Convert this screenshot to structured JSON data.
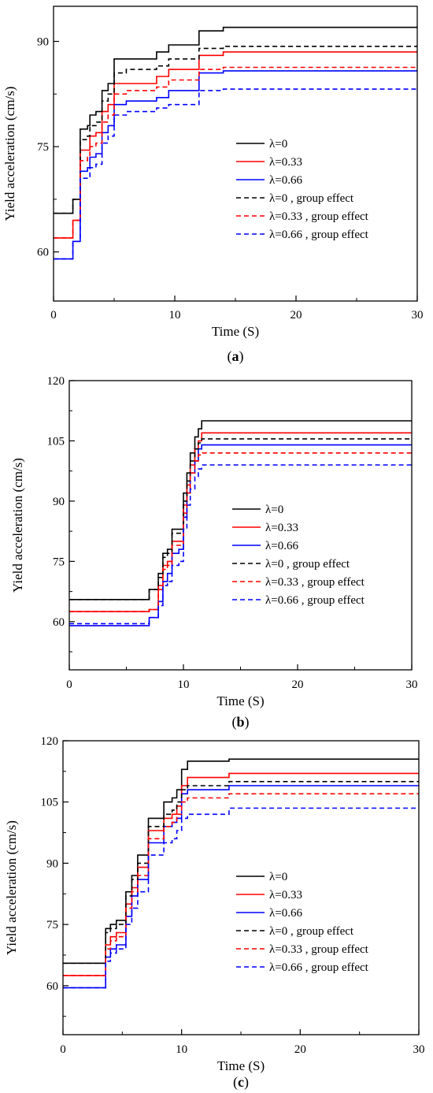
{
  "chart_data": [
    {
      "type": "line",
      "caption_letter": "a",
      "xlabel": "Time (S)",
      "ylabel": "Yield acceleration (cm/s)",
      "xlim": [
        0,
        30
      ],
      "ylim": [
        53,
        95
      ],
      "x_ticks": [
        0,
        10,
        20,
        30
      ],
      "y_ticks": [
        60,
        75,
        90
      ],
      "legend_position": "center-right",
      "series": [
        {
          "name": "λ=0",
          "color": "#000000",
          "dash": false,
          "x": [
            0,
            1.5,
            1.6,
            2.0,
            2.2,
            2.8,
            3.0,
            3.5,
            4.0,
            4.5,
            5.0,
            6.0,
            8.5,
            9.5,
            12.0,
            14.0,
            30
          ],
          "y": [
            65.5,
            65.5,
            67.5,
            67.5,
            77.5,
            78,
            79.5,
            80,
            83,
            84,
            87.5,
            87.5,
            88.5,
            89.5,
            91.5,
            92,
            92.2
          ]
        },
        {
          "name": "λ=0.33",
          "color": "#ff0000",
          "dash": false,
          "x": [
            0,
            1.5,
            1.6,
            2.0,
            2.2,
            2.8,
            3.0,
            3.5,
            4.0,
            4.5,
            5.0,
            6.0,
            8.5,
            9.5,
            12.0,
            14.0,
            30
          ],
          "y": [
            62,
            62,
            64.5,
            64.5,
            74.5,
            74.5,
            76.5,
            77,
            80,
            81,
            84,
            84,
            85,
            86,
            88,
            88.5,
            88.7
          ]
        },
        {
          "name": "λ=0.66",
          "color": "#0000ff",
          "dash": false,
          "x": [
            0,
            1.5,
            1.6,
            2.0,
            2.2,
            2.8,
            3.0,
            3.5,
            4.0,
            4.5,
            5.0,
            6.0,
            8.5,
            9.5,
            12.0,
            14.0,
            30
          ],
          "y": [
            59,
            59,
            61.5,
            61.5,
            71.5,
            72,
            73.5,
            74,
            77,
            78,
            81,
            81.5,
            82,
            83,
            85.5,
            85.8,
            86
          ]
        },
        {
          "name": "λ=0 , group effect",
          "color": "#000000",
          "dash": true,
          "x": [
            0,
            1.5,
            1.6,
            2.0,
            2.2,
            2.8,
            3.0,
            3.5,
            4.0,
            4.5,
            5.0,
            6.0,
            8.5,
            9.5,
            12.0,
            14.0,
            30
          ],
          "y": [
            65.5,
            65.5,
            67.5,
            67.5,
            76,
            76.5,
            78,
            78.5,
            81.5,
            82.5,
            85.5,
            86,
            86.5,
            87.5,
            89,
            89.3,
            89.5
          ]
        },
        {
          "name": "λ=0.33 , group effect",
          "color": "#ff0000",
          "dash": true,
          "x": [
            0,
            1.5,
            1.6,
            2.0,
            2.2,
            2.8,
            3.0,
            3.5,
            4.0,
            4.5,
            5.0,
            6.0,
            8.5,
            9.5,
            12.0,
            14.0,
            30
          ],
          "y": [
            62,
            62,
            64.5,
            64.5,
            73,
            73.5,
            75,
            75.5,
            78.5,
            79.5,
            82.5,
            83,
            83.5,
            84.5,
            86,
            86.3,
            86.5
          ]
        },
        {
          "name": "λ=0.66 , group effect",
          "color": "#0000ff",
          "dash": true,
          "x": [
            0,
            1.5,
            1.6,
            2.0,
            2.2,
            2.8,
            3.0,
            3.5,
            4.0,
            4.5,
            5.0,
            6.0,
            8.5,
            9.5,
            12.0,
            14.0,
            30
          ],
          "y": [
            59,
            59,
            61.5,
            61.5,
            70.5,
            70.5,
            72,
            72.5,
            75.5,
            76.5,
            79.5,
            80,
            80.5,
            81,
            83,
            83.2,
            83.5
          ]
        }
      ]
    },
    {
      "type": "line",
      "caption_letter": "b",
      "xlabel": "Time (S)",
      "ylabel": "Yield acceleration (cm/s)",
      "xlim": [
        0,
        30
      ],
      "ylim": [
        48,
        120
      ],
      "x_ticks": [
        0,
        10,
        20,
        30
      ],
      "y_ticks": [
        60,
        75,
        90,
        105,
        120
      ],
      "legend_position": "center-right",
      "series": [
        {
          "name": "λ=0",
          "color": "#000000",
          "dash": false,
          "x": [
            0,
            6.8,
            7.0,
            7.8,
            8.2,
            8.6,
            9.0,
            9.6,
            10.0,
            10.3,
            10.6,
            11.0,
            11.3,
            11.6,
            30
          ],
          "y": [
            65.5,
            65.5,
            68,
            72,
            77,
            78,
            83,
            83,
            92,
            97,
            102,
            106,
            108,
            110,
            110
          ]
        },
        {
          "name": "λ=0.33",
          "color": "#ff0000",
          "dash": false,
          "x": [
            0,
            6.8,
            7.0,
            7.8,
            8.2,
            8.6,
            9.0,
            9.6,
            10.0,
            10.3,
            10.6,
            11.0,
            11.3,
            11.6,
            30
          ],
          "y": [
            62.5,
            62.5,
            63,
            69,
            74,
            75,
            80,
            80,
            89,
            94,
            99,
            103,
            105,
            107,
            107
          ]
        },
        {
          "name": "λ=0.66",
          "color": "#0000ff",
          "dash": false,
          "x": [
            0,
            6.8,
            7.0,
            7.8,
            8.2,
            8.6,
            9.0,
            9.6,
            10.0,
            10.3,
            10.6,
            11.0,
            11.3,
            11.6,
            30
          ],
          "y": [
            59,
            59,
            61,
            65,
            70,
            72,
            77,
            78,
            86,
            92,
            97,
            100,
            103,
            104,
            104
          ]
        },
        {
          "name": "λ=0 , group effect",
          "color": "#000000",
          "dash": true,
          "x": [
            0,
            6.8,
            7.0,
            7.8,
            8.2,
            8.6,
            9.0,
            9.6,
            10.0,
            10.3,
            10.6,
            11.0,
            11.3,
            11.6,
            30
          ],
          "y": [
            65.5,
            65.5,
            68,
            71,
            76,
            77,
            82,
            82,
            90,
            95,
            100,
            103,
            104.5,
            105.5,
            105.5
          ]
        },
        {
          "name": "λ=0.33 , group effect",
          "color": "#ff0000",
          "dash": true,
          "x": [
            0,
            6.8,
            7.0,
            7.8,
            8.2,
            8.6,
            9.0,
            9.6,
            10.0,
            10.3,
            10.6,
            11.0,
            11.3,
            11.6,
            30
          ],
          "y": [
            62.5,
            62.5,
            63,
            68,
            73,
            74,
            79,
            79,
            87,
            92,
            97,
            100,
            101.5,
            102,
            102
          ]
        },
        {
          "name": "λ=0.66 , group effect",
          "color": "#0000ff",
          "dash": true,
          "x": [
            0,
            6.8,
            7.0,
            7.8,
            8.2,
            8.6,
            9.0,
            9.6,
            10.0,
            10.3,
            10.6,
            11.0,
            11.3,
            11.6,
            30
          ],
          "y": [
            59.5,
            59.5,
            61,
            64,
            69,
            70,
            74,
            75,
            83,
            89,
            93,
            96,
            98,
            99,
            99
          ]
        }
      ]
    },
    {
      "type": "line",
      "caption_letter": "c",
      "xlabel": "Time (S)",
      "ylabel": "Yield acceleration (cm/s)",
      "xlim": [
        0,
        30
      ],
      "ylim": [
        48,
        120
      ],
      "x_ticks": [
        0,
        10,
        20,
        30
      ],
      "y_ticks": [
        60,
        75,
        90,
        105,
        120
      ],
      "legend_position": "center-right",
      "series": [
        {
          "name": "λ=0",
          "color": "#000000",
          "dash": false,
          "x": [
            0,
            3.3,
            3.6,
            4.0,
            4.5,
            5.0,
            5.3,
            5.8,
            6.3,
            6.8,
            7.2,
            8.5,
            9.2,
            9.6,
            10.0,
            10.5,
            14.0,
            30
          ],
          "y": [
            65.5,
            65.5,
            74,
            75,
            76,
            76,
            83,
            87,
            92,
            92,
            101,
            105,
            106,
            108,
            113,
            115,
            115.5,
            115.5
          ]
        },
        {
          "name": "λ=0.33",
          "color": "#ff0000",
          "dash": false,
          "x": [
            0,
            3.3,
            3.6,
            4.0,
            4.5,
            5.0,
            5.3,
            5.8,
            6.3,
            6.8,
            7.2,
            8.5,
            9.2,
            9.6,
            10.0,
            10.5,
            14.0,
            30
          ],
          "y": [
            62.5,
            62.5,
            70,
            72,
            73,
            73,
            80,
            84,
            89,
            89,
            98,
            101,
            102,
            104,
            109,
            111,
            112,
            112
          ]
        },
        {
          "name": "λ=0.66",
          "color": "#0000ff",
          "dash": false,
          "x": [
            0,
            3.3,
            3.6,
            4.0,
            4.5,
            5.0,
            5.3,
            5.8,
            6.3,
            6.8,
            7.2,
            8.5,
            9.2,
            9.6,
            10.0,
            10.5,
            14.0,
            30
          ],
          "y": [
            59.5,
            59.5,
            67,
            69,
            70,
            70,
            77,
            82,
            86,
            86,
            95,
            99,
            100,
            101,
            107,
            108,
            109,
            109
          ]
        },
        {
          "name": "λ=0 , group effect",
          "color": "#000000",
          "dash": true,
          "x": [
            0,
            3.3,
            3.6,
            4.0,
            4.5,
            5.0,
            5.3,
            5.8,
            6.3,
            6.8,
            7.2,
            8.5,
            9.2,
            9.6,
            10.0,
            10.5,
            14.0,
            30
          ],
          "y": [
            65.5,
            65.5,
            73,
            74,
            75,
            75,
            82,
            86,
            90,
            90,
            99,
            102,
            103,
            105,
            108,
            109,
            110,
            110
          ]
        },
        {
          "name": "λ=0.33 , group effect",
          "color": "#ff0000",
          "dash": true,
          "x": [
            0,
            3.3,
            3.6,
            4.0,
            4.5,
            5.0,
            5.3,
            5.8,
            6.3,
            6.8,
            7.2,
            8.5,
            9.2,
            9.6,
            10.0,
            10.5,
            14.0,
            30
          ],
          "y": [
            62.5,
            62.5,
            69,
            71,
            72,
            72,
            79,
            83,
            87,
            87,
            96,
            99,
            100,
            102,
            105,
            106,
            107,
            107
          ]
        },
        {
          "name": "λ=0.66 , group effect",
          "color": "#0000ff",
          "dash": true,
          "x": [
            0,
            3.3,
            3.6,
            4.0,
            4.5,
            5.0,
            5.3,
            5.8,
            6.3,
            6.8,
            7.2,
            8.5,
            9.2,
            9.6,
            10.0,
            10.5,
            14.0,
            30
          ],
          "y": [
            59.5,
            59.5,
            66,
            68,
            69,
            69,
            75,
            79,
            83,
            83,
            92,
            95,
            96,
            98,
            101,
            102,
            103.5,
            103.5
          ]
        }
      ]
    }
  ]
}
